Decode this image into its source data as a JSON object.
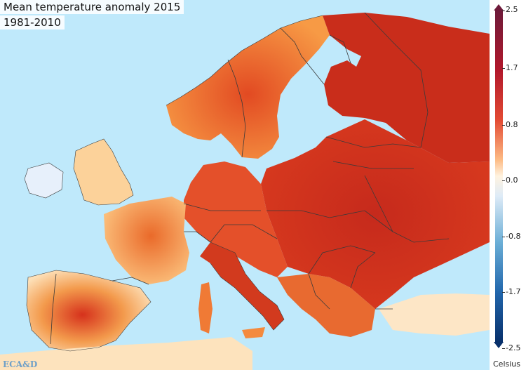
{
  "title": "Mean temperature anomaly 2015",
  "period": "1981-2010",
  "logo": "ECA&D",
  "legend": {
    "unit": "Celsius",
    "ticks": [
      "2.5",
      "1.7",
      "0.8",
      "0.0",
      "-0.8",
      "-1.7",
      "-2.5"
    ],
    "colors": {
      "max": "#6e1a3a",
      "high": "#b2182b",
      "warm": "#e34a33",
      "mild": "#fdbb84",
      "neutral": "#fff3e0",
      "cool": "#6baed6",
      "min": "#08306b"
    }
  },
  "map": {
    "sea_color": "#bfe9fb",
    "border_color": "#3a3a3a"
  }
}
